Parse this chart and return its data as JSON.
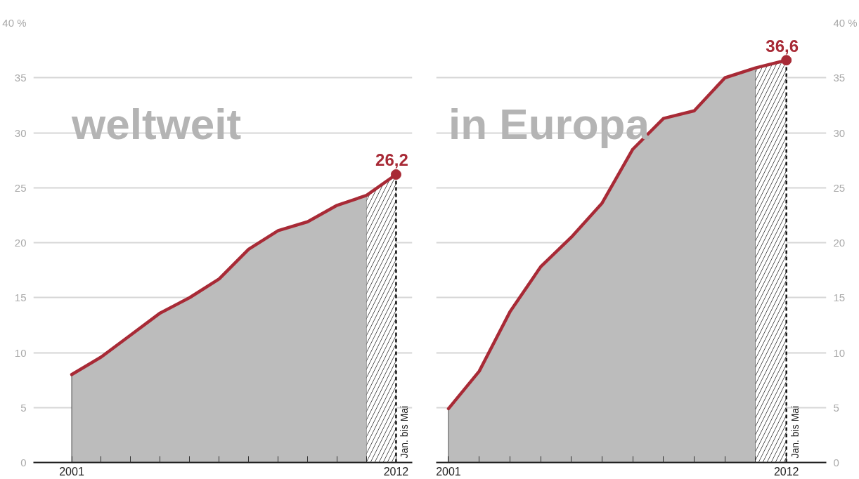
{
  "chart_data": [
    {
      "type": "area",
      "title": "weltweit",
      "x": [
        2001,
        2002,
        2003,
        2004,
        2005,
        2006,
        2007,
        2008,
        2009,
        2010,
        2011,
        2012
      ],
      "series": [
        {
          "color": "#bcbcbc",
          "x": [
            2001,
            2002,
            2003,
            2004,
            2005,
            2006,
            2007,
            2008,
            2009,
            2010,
            2011
          ],
          "values": [
            8.0,
            9.6,
            11.6,
            13.6,
            15.0,
            16.7,
            19.4,
            21.1,
            21.9,
            23.4,
            24.3
          ]
        },
        {
          "type": "line",
          "color": "#a82a36",
          "values": [
            8.0,
            9.6,
            11.6,
            13.6,
            15.0,
            16.7,
            19.4,
            21.1,
            21.9,
            23.4,
            24.3,
            26.2
          ]
        },
        {
          "type": "scatter",
          "color": "#a82a36",
          "marker": "circle",
          "x": [
            2012
          ],
          "values": [
            26.2
          ],
          "value_labels": [
            "26,2"
          ]
        }
      ],
      "xlim": [
        1999.7,
        2012.55
      ],
      "xticks": [
        2001,
        {
          "value": 2002,
          "label": null
        },
        {
          "value": 2003,
          "label": null
        },
        {
          "value": 2004,
          "label": null
        },
        {
          "value": 2005,
          "label": null
        },
        {
          "value": 2006,
          "label": null
        },
        {
          "value": 2007,
          "label": null
        },
        {
          "value": 2008,
          "label": null
        },
        {
          "value": 2009,
          "label": null
        },
        {
          "value": 2010,
          "label": null
        },
        {
          "value": 2011,
          "label": null
        },
        2012
      ],
      "ylim": [
        0,
        40
      ],
      "yticks": [
        0,
        5,
        10,
        15,
        20,
        25,
        30,
        35,
        {
          "value": 40,
          "label": "40 %"
        }
      ],
      "grid": "y",
      "bands": [
        {
          "axis": "x",
          "from": 2011,
          "to": 2012,
          "color": "#555555"
        }
      ],
      "ref_lines": [
        {
          "axis": "x",
          "value": 2012,
          "label": "Jan. bis Mai",
          "color": "#111111",
          "line_style": "dashed"
        }
      ]
    },
    {
      "type": "area",
      "title": "in Europa",
      "x": [
        2001,
        2002,
        2003,
        2004,
        2005,
        2006,
        2007,
        2008,
        2009,
        2010,
        2011,
        2012
      ],
      "series": [
        {
          "color": "#bcbcbc",
          "x": [
            2001,
            2002,
            2003,
            2004,
            2005,
            2006,
            2007,
            2008,
            2009,
            2010,
            2011
          ],
          "values": [
            4.9,
            8.3,
            13.7,
            17.8,
            20.5,
            23.6,
            28.5,
            31.3,
            32.0,
            35.0,
            35.9
          ]
        },
        {
          "type": "line",
          "color": "#a82a36",
          "values": [
            4.9,
            8.3,
            13.7,
            17.8,
            20.5,
            23.6,
            28.5,
            31.3,
            32.0,
            35.0,
            35.9,
            36.6
          ]
        },
        {
          "type": "scatter",
          "color": "#a82a36",
          "marker": "circle",
          "x": [
            2012
          ],
          "values": [
            36.6
          ],
          "value_labels": [
            "36,6"
          ]
        }
      ],
      "xlim": [
        2000.6,
        2013.3
      ],
      "xticks": [
        2001,
        {
          "value": 2002,
          "label": null
        },
        {
          "value": 2003,
          "label": null
        },
        {
          "value": 2004,
          "label": null
        },
        {
          "value": 2005,
          "label": null
        },
        {
          "value": 2006,
          "label": null
        },
        {
          "value": 2007,
          "label": null
        },
        {
          "value": 2008,
          "label": null
        },
        {
          "value": 2009,
          "label": null
        },
        {
          "value": 2010,
          "label": null
        },
        {
          "value": 2011,
          "label": null
        },
        2012
      ],
      "ylim": [
        0,
        40
      ],
      "yticks": [
        0,
        5,
        10,
        15,
        20,
        25,
        30,
        35,
        {
          "value": 40,
          "label": "40 %"
        }
      ],
      "grid": "y",
      "bands": [
        {
          "axis": "x",
          "from": 2011,
          "to": 2012,
          "color": "#555555"
        }
      ],
      "ref_lines": [
        {
          "axis": "x",
          "value": 2012,
          "label": "Jan. bis Mai",
          "color": "#111111",
          "line_style": "dashed"
        }
      ]
    }
  ]
}
